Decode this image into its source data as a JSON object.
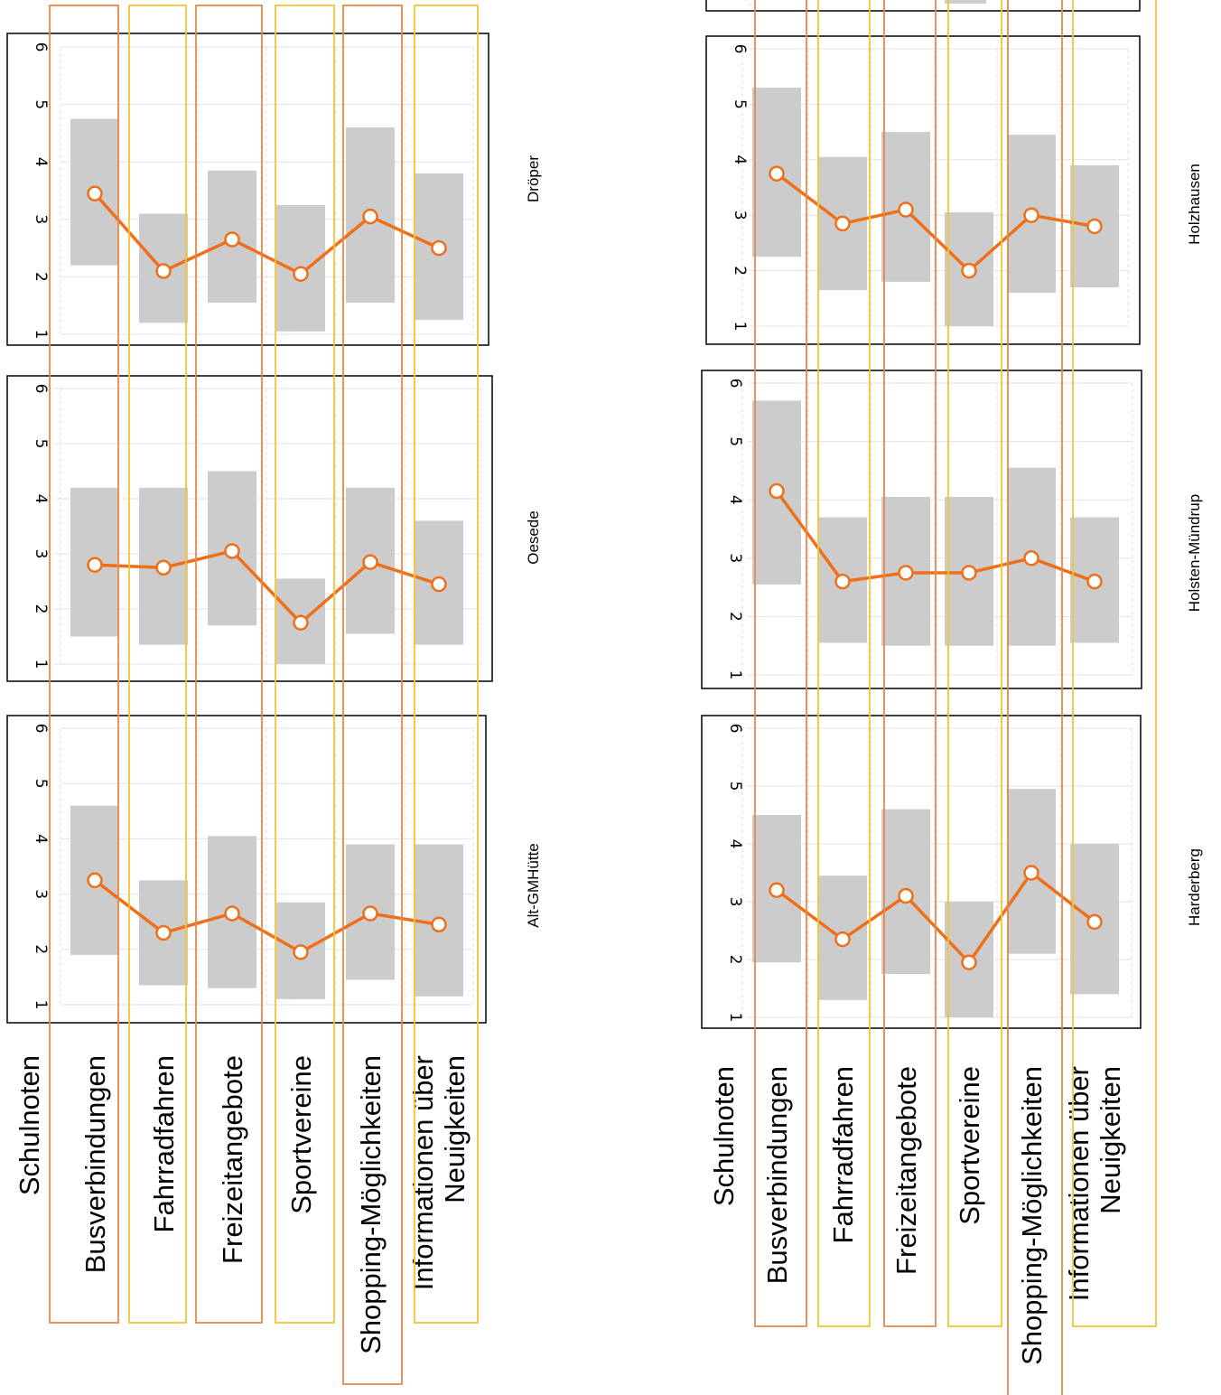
{
  "header": "Schulnoten",
  "categories": [
    "Busverbindungen",
    "Fahrradfahren",
    "Freizeitangebote",
    "Sportvereine",
    "Shopping-Möglichkeiten",
    [
      "Informationen über",
      "Neuigkeiten"
    ]
  ],
  "colors": {
    "line": "#ef6f1a",
    "box": "#cccccc",
    "grid": "#e2e2e2",
    "frame_orange": "#e8884a",
    "frame_yellow": "#f4c430"
  },
  "chart_data": [
    {
      "type": "line",
      "title": "Alt-GMHütte",
      "categories": [
        "Busverbindungen",
        "Fahrradfahren",
        "Freizeitangebote",
        "Sportvereine",
        "Shopping-Möglichkeiten",
        "Informationen über Neuigkeiten"
      ],
      "values": [
        3.25,
        2.3,
        2.65,
        1.95,
        2.65,
        2.45
      ],
      "ranges": [
        [
          1.9,
          4.6
        ],
        [
          1.35,
          3.25
        ],
        [
          1.3,
          4.05
        ],
        [
          1.1,
          2.85
        ],
        [
          1.45,
          3.9
        ],
        [
          1.15,
          3.9
        ]
      ],
      "ylim": [
        1,
        6
      ],
      "yticks": [
        1,
        2,
        3,
        4,
        5,
        6
      ],
      "grid": true
    },
    {
      "type": "line",
      "title": "Oesede",
      "categories": [
        "Busverbindungen",
        "Fahrradfahren",
        "Freizeitangebote",
        "Sportvereine",
        "Shopping-Möglichkeiten",
        "Informationen über Neuigkeiten"
      ],
      "values": [
        2.8,
        2.75,
        3.05,
        1.75,
        2.85,
        2.45
      ],
      "ranges": [
        [
          1.5,
          4.2
        ],
        [
          1.35,
          4.2
        ],
        [
          1.7,
          4.5
        ],
        [
          1.0,
          2.55
        ],
        [
          1.55,
          4.2
        ],
        [
          1.35,
          3.6
        ]
      ],
      "ylim": [
        1,
        6
      ],
      "yticks": [
        1,
        2,
        3,
        4,
        5,
        6
      ],
      "grid": true
    },
    {
      "type": "line",
      "title": "Dröper",
      "categories": [
        "Busverbindungen",
        "Fahrradfahren",
        "Freizeitangebote",
        "Sportvereine",
        "Shopping-Möglichkeiten",
        "Informationen über Neuigkeiten"
      ],
      "values": [
        3.45,
        2.1,
        2.65,
        2.05,
        3.05,
        2.5
      ],
      "ranges": [
        [
          2.2,
          4.75
        ],
        [
          1.2,
          3.1
        ],
        [
          1.55,
          3.85
        ],
        [
          1.05,
          3.25
        ],
        [
          1.55,
          4.6
        ],
        [
          1.25,
          3.8
        ]
      ],
      "ylim": [
        1,
        6
      ],
      "yticks": [
        1,
        2,
        3,
        4,
        5,
        6
      ],
      "grid": true
    },
    {
      "type": "line",
      "title": "Harderberg",
      "categories": [
        "Busverbindungen",
        "Fahrradfahren",
        "Freizeitangebote",
        "Sportvereine",
        "Shopping-Möglichkeiten",
        "Informationen über Neuigkeiten"
      ],
      "values": [
        3.2,
        2.35,
        3.1,
        1.95,
        3.5,
        2.65
      ],
      "ranges": [
        [
          1.95,
          4.5
        ],
        [
          1.3,
          3.45
        ],
        [
          1.75,
          4.6
        ],
        [
          1.0,
          3.0
        ],
        [
          2.1,
          4.95
        ],
        [
          1.4,
          4.0
        ]
      ],
      "ylim": [
        1,
        6
      ],
      "yticks": [
        1,
        2,
        3,
        4,
        5,
        6
      ],
      "grid": true
    },
    {
      "type": "line",
      "title": "Holsten-Mündrup",
      "categories": [
        "Busverbindungen",
        "Fahrradfahren",
        "Freizeitangebote",
        "Sportvereine",
        "Shopping-Möglichkeiten",
        "Informationen über Neuigkeiten"
      ],
      "values": [
        4.15,
        2.6,
        2.75,
        2.75,
        3.0,
        2.6
      ],
      "ranges": [
        [
          2.55,
          5.7
        ],
        [
          1.55,
          3.7
        ],
        [
          1.5,
          4.05
        ],
        [
          1.5,
          4.05
        ],
        [
          1.5,
          4.55
        ],
        [
          1.55,
          3.7
        ]
      ],
      "ylim": [
        1,
        6
      ],
      "yticks": [
        1,
        2,
        3,
        4,
        5,
        6
      ],
      "grid": true
    },
    {
      "type": "line",
      "title": "Holzhausen",
      "categories": [
        "Busverbindungen",
        "Fahrradfahren",
        "Freizeitangebote",
        "Sportvereine",
        "Shopping-Möglichkeiten",
        "Informationen über Neuigkeiten"
      ],
      "values": [
        3.75,
        2.85,
        3.1,
        2.0,
        3.0,
        2.8
      ],
      "ranges": [
        [
          2.25,
          5.3
        ],
        [
          1.65,
          4.05
        ],
        [
          1.8,
          4.5
        ],
        [
          1.0,
          3.05
        ],
        [
          1.6,
          4.45
        ],
        [
          1.7,
          3.9
        ]
      ],
      "ylim": [
        1,
        6
      ],
      "yticks": [
        1,
        2,
        3,
        4,
        5,
        6
      ],
      "grid": true
    }
  ]
}
